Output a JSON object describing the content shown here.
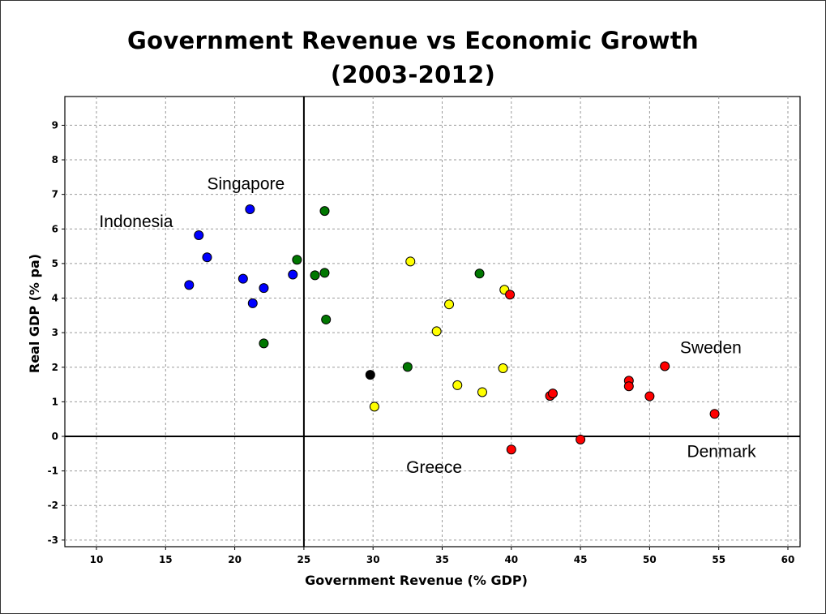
{
  "title_line1": "Government Revenue vs Economic Growth",
  "title_line2": "(2003-2012)",
  "chart_data": {
    "type": "scatter",
    "title": "Government Revenue vs Economic Growth (2003-2012)",
    "xlabel": "Government Revenue (% GDP)",
    "ylabel": "Real GDP (% pa)",
    "xlim": [
      7.5,
      61
    ],
    "ylim": [
      -3.3,
      9.9
    ],
    "xticks": [
      10,
      15,
      20,
      25,
      30,
      35,
      40,
      45,
      50,
      55,
      60
    ],
    "yticks": [
      -3,
      -2,
      -1,
      0,
      1,
      2,
      3,
      4,
      5,
      6,
      7,
      8,
      9
    ],
    "grid": true,
    "reference_lines": {
      "x": 25,
      "y": 0
    },
    "series": [
      {
        "color": "#0000ff",
        "points": [
          {
            "x": 16.7,
            "y": 4.38
          },
          {
            "x": 17.4,
            "y": 5.82
          },
          {
            "x": 18.0,
            "y": 5.18
          },
          {
            "x": 20.6,
            "y": 4.56
          },
          {
            "x": 21.1,
            "y": 6.57
          },
          {
            "x": 21.3,
            "y": 3.85
          },
          {
            "x": 22.1,
            "y": 4.29
          },
          {
            "x": 24.2,
            "y": 4.68
          }
        ]
      },
      {
        "color": "#007700",
        "points": [
          {
            "x": 22.1,
            "y": 2.69
          },
          {
            "x": 24.5,
            "y": 5.11
          },
          {
            "x": 25.8,
            "y": 4.66
          },
          {
            "x": 26.5,
            "y": 4.73
          },
          {
            "x": 26.5,
            "y": 6.52
          },
          {
            "x": 26.6,
            "y": 3.38
          },
          {
            "x": 32.5,
            "y": 2.01
          },
          {
            "x": 37.7,
            "y": 4.71
          }
        ]
      },
      {
        "color": "#000000",
        "points": [
          {
            "x": 29.8,
            "y": 1.78
          }
        ]
      },
      {
        "color": "#ffff00",
        "points": [
          {
            "x": 30.1,
            "y": 0.86
          },
          {
            "x": 32.7,
            "y": 5.06
          },
          {
            "x": 34.6,
            "y": 3.04
          },
          {
            "x": 35.5,
            "y": 3.82
          },
          {
            "x": 36.1,
            "y": 1.48
          },
          {
            "x": 37.9,
            "y": 1.28
          },
          {
            "x": 39.4,
            "y": 1.97
          },
          {
            "x": 39.5,
            "y": 4.24
          }
        ]
      },
      {
        "color": "#ff0000",
        "points": [
          {
            "x": 39.9,
            "y": 4.1
          },
          {
            "x": 40.0,
            "y": -0.38
          },
          {
            "x": 42.8,
            "y": 1.17
          },
          {
            "x": 43.0,
            "y": 1.24
          },
          {
            "x": 45.0,
            "y": -0.09
          },
          {
            "x": 48.5,
            "y": 1.61
          },
          {
            "x": 48.5,
            "y": 1.45
          },
          {
            "x": 50.0,
            "y": 1.16
          },
          {
            "x": 51.1,
            "y": 2.03
          },
          {
            "x": 54.7,
            "y": 0.65
          }
        ]
      }
    ],
    "annotations": [
      {
        "text": "Singapore",
        "x": 18.0,
        "y": 7.15
      },
      {
        "text": "Indonesia",
        "x": 10.2,
        "y": 6.05
      },
      {
        "text": "Sweden",
        "x": 52.2,
        "y": 2.4
      },
      {
        "text": "Denmark",
        "x": 52.7,
        "y": -0.6
      },
      {
        "text": "Greece",
        "x": 32.4,
        "y": -1.05
      }
    ]
  }
}
